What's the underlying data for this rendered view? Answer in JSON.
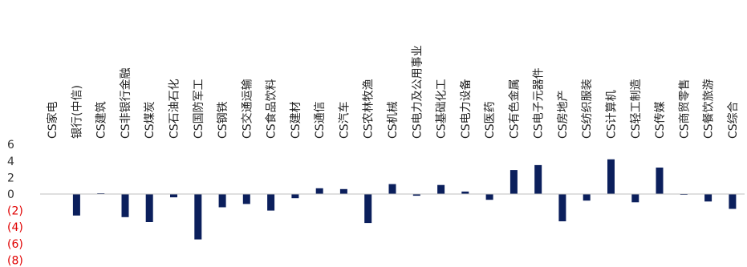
{
  "chart_data": {
    "type": "bar",
    "title": "",
    "xlabel": "",
    "ylabel": "",
    "ylim": [
      -8,
      6
    ],
    "yticks": [
      6,
      4,
      2,
      0,
      -2,
      -4,
      -6,
      -8
    ],
    "ytick_labels": [
      "6",
      "4",
      "2",
      "0",
      "(2)",
      "(4)",
      "(6)",
      "(8)"
    ],
    "negative_tick_color": "#e00000",
    "positive_tick_color": "#333333",
    "bar_color": "#0b1f5c",
    "axis_color": "#bfbfbf",
    "grid": false,
    "legend": "none",
    "categories": [
      "CS家电",
      "银行(中信)",
      "CS建筑",
      "CS非银行金融",
      "CS煤炭",
      "CS石油石化",
      "CS国防军工",
      "CS钢铁",
      "CS交通运输",
      "CS食品饮料",
      "CS建材",
      "CS通信",
      "CS汽车",
      "CS农林牧渔",
      "CS机械",
      "CS电力及公用事业",
      "CS基础化工",
      "CS电力设备",
      "CS医药",
      "CS有色金属",
      "CS电子元器件",
      "CS房地产",
      "CS纺织服装",
      "CS计算机",
      "CS轻工制造",
      "CS传媒",
      "CS商贸零售",
      "CS餐饮旅游",
      "CS综合"
    ],
    "values": [
      0.0,
      -2.6,
      0.1,
      -2.8,
      -3.4,
      -0.4,
      -5.5,
      -1.6,
      -1.2,
      -2.0,
      -0.5,
      0.7,
      0.6,
      -3.5,
      1.2,
      -0.2,
      1.1,
      0.3,
      -0.7,
      2.9,
      3.5,
      -3.3,
      -0.8,
      4.2,
      -1.0,
      3.2,
      -0.1,
      -0.9,
      -1.8
    ]
  }
}
